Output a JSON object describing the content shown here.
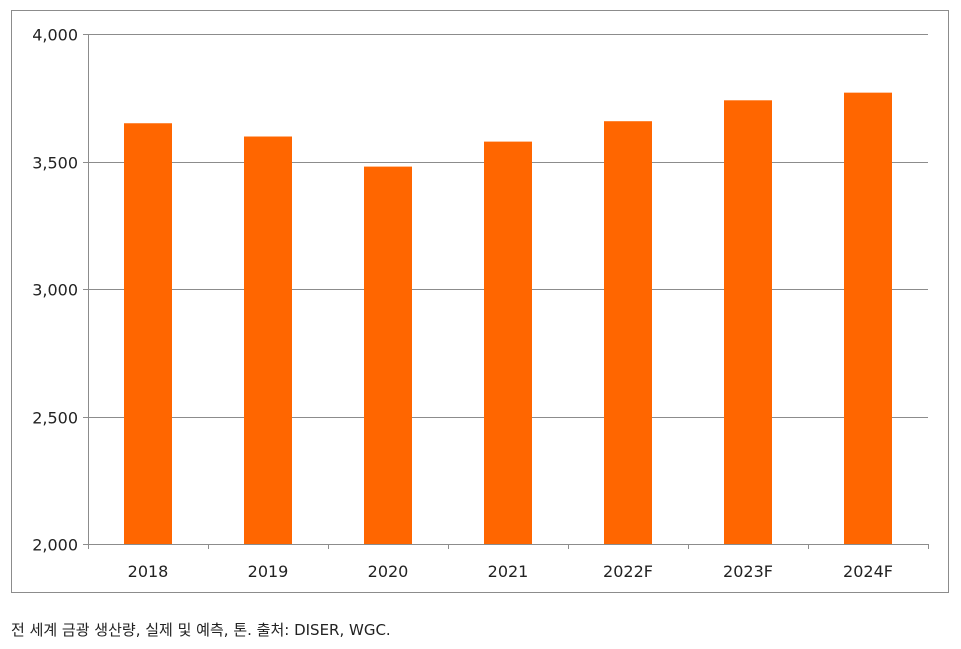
{
  "chart_data": {
    "type": "bar",
    "title": "",
    "xlabel": "",
    "ylabel": "",
    "categories": [
      "2018",
      "2019",
      "2020",
      "2021",
      "2022F",
      "2023F",
      "2024F"
    ],
    "values": [
      3650,
      3598,
      3480,
      3578,
      3658,
      3740,
      3770
    ],
    "ylim": [
      2000,
      4000
    ],
    "yticks": [
      2000,
      2500,
      3000,
      3500,
      4000
    ],
    "ytick_labels": [
      "2,000",
      "2,500",
      "3,000",
      "3,500",
      "4,000"
    ],
    "grid": true,
    "legend": "none",
    "bar_color": "#FF6600",
    "grid_color": "#8c8c8c",
    "axis_color": "#8c8c8c"
  },
  "caption": "전 세계 금광 생산량, 실제 및 예측, 톤. 출처: DISER, WGC."
}
